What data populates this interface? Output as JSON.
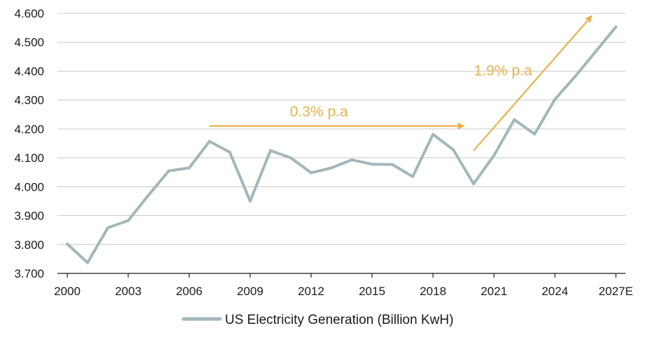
{
  "chart_data": {
    "type": "line",
    "title": "",
    "xlabel": "",
    "ylabel": "",
    "x_ticks": [
      "2000",
      "2003",
      "2006",
      "2009",
      "2012",
      "2015",
      "2018",
      "2021",
      "2024",
      "2027E"
    ],
    "y_ticks": [
      "3.700",
      "3.800",
      "3.900",
      "4.000",
      "4.100",
      "4.200",
      "4.300",
      "4.400",
      "4.500",
      "4.600"
    ],
    "ylim": [
      3700,
      4600
    ],
    "xlim": [
      2000,
      2027
    ],
    "grid": "horizontal",
    "legend_position": "bottom-center",
    "series": [
      {
        "name": "US Electricity Generation (Billion KwH)",
        "color": "#a3b7ba",
        "x": [
          2000,
          2001,
          2002,
          2003,
          2004,
          2005,
          2006,
          2007,
          2008,
          2009,
          2010,
          2011,
          2012,
          2013,
          2014,
          2015,
          2016,
          2017,
          2018,
          2019,
          2020,
          2021,
          2022,
          2023,
          2024,
          2025,
          2026,
          2027
        ],
        "values": [
          3802,
          3737,
          3858,
          3883,
          3971,
          4055,
          4065,
          4157,
          4119,
          3950,
          4125,
          4100,
          4048,
          4065,
          4093,
          4078,
          4077,
          4035,
          4181,
          4128,
          4010,
          4108,
          4232,
          4182,
          4302,
          4382,
          4467,
          4553
        ]
      }
    ],
    "annotations": [
      {
        "text": "0.3% p.a",
        "from": [
          2007,
          4210
        ],
        "to": [
          2019.5,
          4210
        ],
        "color": "#e8b14f"
      },
      {
        "text": "1.9% p.a",
        "from": [
          2020,
          4125
        ],
        "to": [
          2025.8,
          4590
        ],
        "color": "#e8b14f"
      }
    ]
  }
}
